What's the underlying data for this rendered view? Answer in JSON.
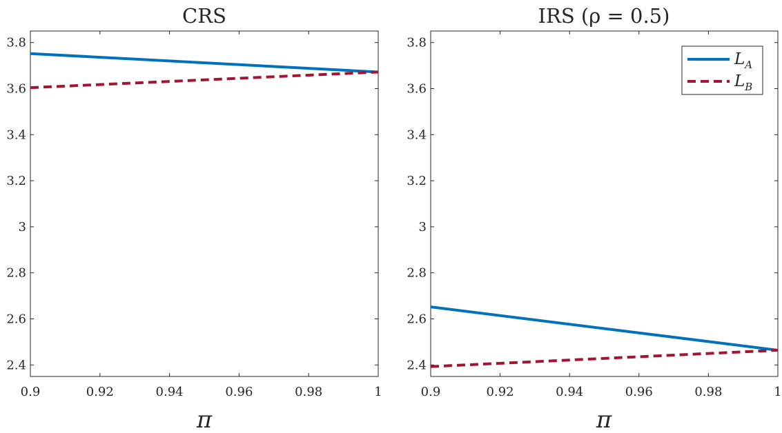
{
  "chart_data": [
    {
      "type": "line",
      "title": "CRS",
      "xlabel": "π",
      "ylabel": "",
      "xlim": [
        0.9,
        1.0
      ],
      "ylim": [
        2.35,
        3.85
      ],
      "xticks": [
        0.9,
        0.92,
        0.94,
        0.96,
        0.98,
        1.0
      ],
      "xtick_labels": [
        "0.9",
        "0.92",
        "0.94",
        "0.96",
        "0.98",
        "1"
      ],
      "yticks": [
        2.4,
        2.6,
        2.8,
        3.0,
        3.2,
        3.4,
        3.6,
        3.8
      ],
      "ytick_labels": [
        "2.4",
        "2.6",
        "2.8",
        "3",
        "3.2",
        "3.4",
        "3.6",
        "3.8"
      ],
      "grid": false,
      "series": [
        {
          "name": "L_A",
          "x": [
            0.9,
            1.0
          ],
          "y": [
            3.752,
            3.672
          ],
          "color": "#0072BD",
          "style": "solid"
        },
        {
          "name": "L_B",
          "x": [
            0.9,
            1.0
          ],
          "y": [
            3.604,
            3.672
          ],
          "color": "#A2142F",
          "style": "dashed"
        }
      ]
    },
    {
      "type": "line",
      "title": "IRS (ρ = 0.5)",
      "xlabel": "π",
      "ylabel": "",
      "xlim": [
        0.9,
        1.0
      ],
      "ylim": [
        2.35,
        3.85
      ],
      "xticks": [
        0.9,
        0.92,
        0.94,
        0.96,
        0.98,
        1.0
      ],
      "xtick_labels": [
        "0.9",
        "0.92",
        "0.94",
        "0.96",
        "0.98",
        "1"
      ],
      "yticks": [
        2.4,
        2.6,
        2.8,
        3.0,
        3.2,
        3.4,
        3.6,
        3.8
      ],
      "ytick_labels": [
        "2.4",
        "2.6",
        "2.8",
        "3",
        "3.2",
        "3.4",
        "3.6",
        "3.8"
      ],
      "grid": false,
      "legend": {
        "placement": "top-right",
        "entries": [
          {
            "main": "L",
            "sub": "A",
            "series": "L_A"
          },
          {
            "main": "L",
            "sub": "B",
            "series": "L_B"
          }
        ]
      },
      "series": [
        {
          "name": "L_A",
          "x": [
            0.9,
            1.0
          ],
          "y": [
            2.652,
            2.464
          ],
          "color": "#0072BD",
          "style": "solid"
        },
        {
          "name": "L_B",
          "x": [
            0.9,
            1.0
          ],
          "y": [
            2.393,
            2.464
          ],
          "color": "#A2142F",
          "style": "dashed"
        }
      ]
    }
  ]
}
